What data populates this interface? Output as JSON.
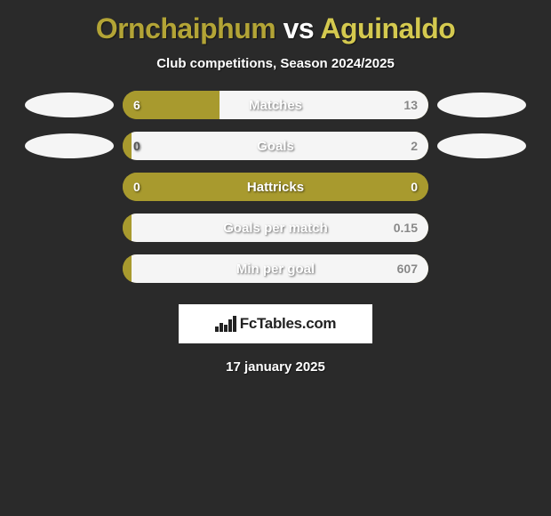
{
  "header": {
    "player1": "Ornchaiphum",
    "vs": "vs",
    "player2": "Aguinaldo",
    "subtitle": "Club competitions, Season 2024/2025"
  },
  "colors": {
    "player1": "#a89a2e",
    "player2": "#f5f5f5",
    "title_p1": "#b3a436",
    "title_p2": "#d4c94f",
    "bar_track": "#a89a2e"
  },
  "stats": [
    {
      "label": "Matches",
      "left_value": "6",
      "right_value": "13",
      "left_pct": 31.6,
      "right_pct": 68.4,
      "left_color": "#a89a2e",
      "right_color": "#f5f5f5",
      "show_ovals": true,
      "oval_left_color": "#f5f5f5",
      "oval_right_color": "#f5f5f5"
    },
    {
      "label": "Goals",
      "left_value": "0",
      "right_value": "2",
      "left_pct": 3,
      "right_pct": 97,
      "left_color": "#a89a2e",
      "right_color": "#f5f5f5",
      "show_ovals": true,
      "oval_left_color": "#f5f5f5",
      "oval_right_color": "#f5f5f5"
    },
    {
      "label": "Hattricks",
      "left_value": "0",
      "right_value": "0",
      "left_pct": 50,
      "right_pct": 50,
      "left_color": "#a89a2e",
      "right_color": "#a89a2e",
      "show_ovals": false
    },
    {
      "label": "Goals per match",
      "left_value": "",
      "right_value": "0.15",
      "left_pct": 3,
      "right_pct": 97,
      "left_color": "#a89a2e",
      "right_color": "#f5f5f5",
      "show_ovals": false
    },
    {
      "label": "Min per goal",
      "left_value": "",
      "right_value": "607",
      "left_pct": 3,
      "right_pct": 97,
      "left_color": "#a89a2e",
      "right_color": "#f5f5f5",
      "show_ovals": false
    }
  ],
  "footer": {
    "logo_text": "FcTables.com",
    "date": "17 january 2025"
  }
}
